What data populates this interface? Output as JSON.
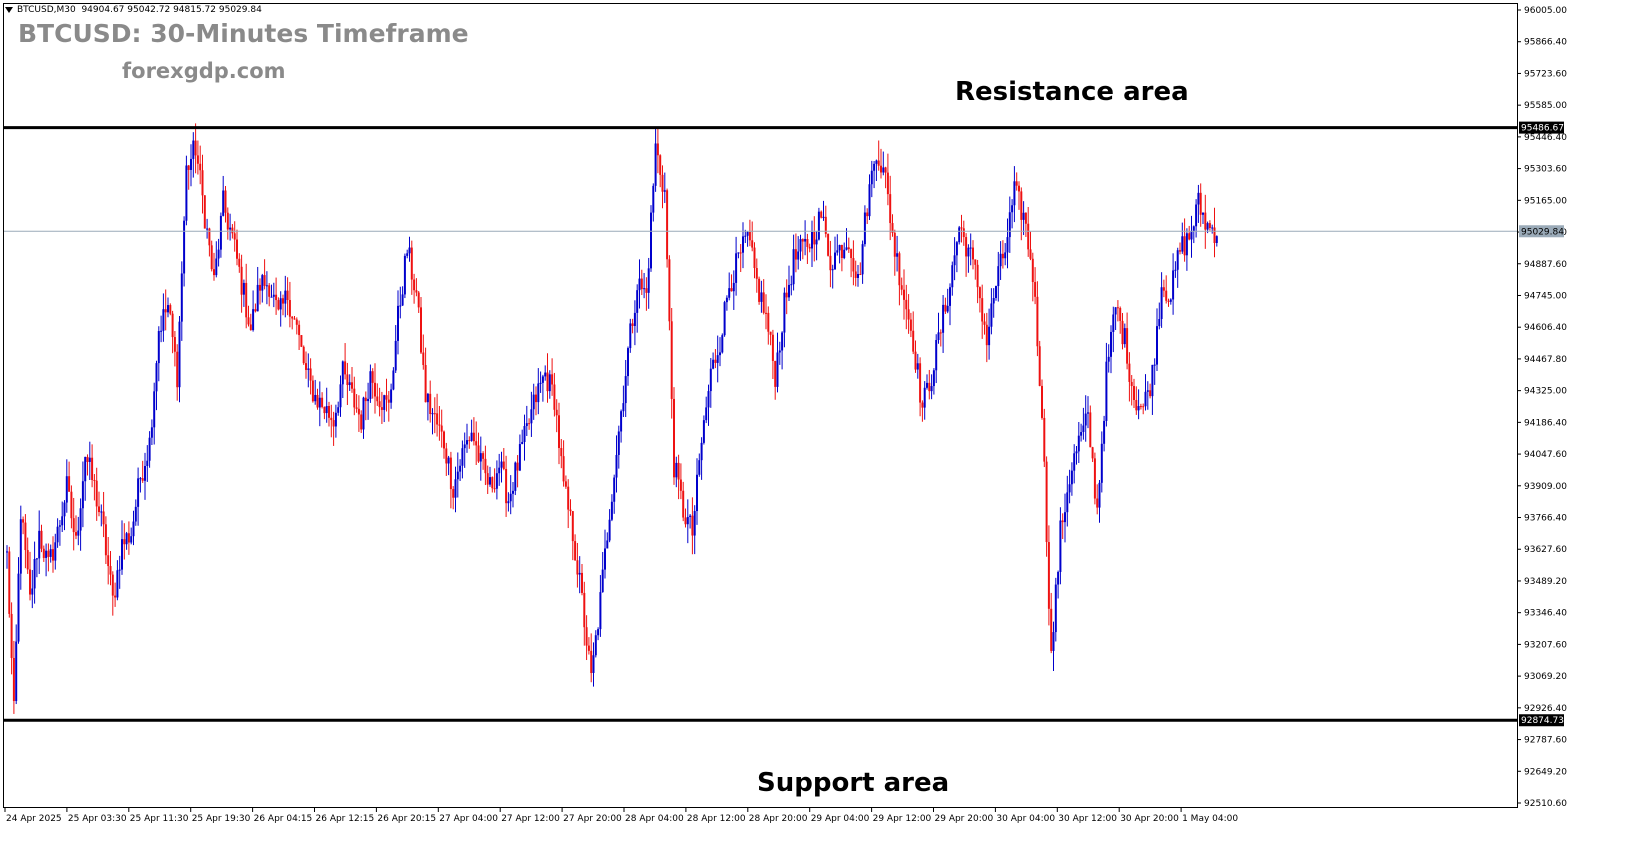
{
  "header": {
    "symbol_info": "BTCUSD,M30  94904.67 95042.72 94815.72 95029.84",
    "title": "BTCUSD: 30-Minutes Timeframe",
    "website": "forexgdp.com"
  },
  "annotations": {
    "resistance": "Resistance area",
    "support": "Support area"
  },
  "colors": {
    "bull": "#0000cc",
    "bear": "#ee1111",
    "level_line": "#000000",
    "current_price_line": "#9aaab8",
    "axis": "#000000"
  },
  "chart_data": {
    "type": "candlestick",
    "symbol": "BTCUSD",
    "timeframe": "M30",
    "ylim": [
      92510.0,
      96005.0
    ],
    "y_ticks": [
      "96005.00",
      "95866.40",
      "95723.60",
      "95585.00",
      "95446.40",
      "95303.60",
      "95165.00",
      "95026.40",
      "94887.60",
      "94745.00",
      "94606.40",
      "94467.80",
      "94325.00",
      "94186.40",
      "94047.60",
      "93909.00",
      "93766.40",
      "93627.60",
      "93489.20",
      "93346.40",
      "93207.60",
      "93069.20",
      "92926.40",
      "92787.60",
      "92649.20",
      "92510.60"
    ],
    "x_ticks": [
      "24 Apr 2025",
      "25 Apr 03:30",
      "25 Apr 11:30",
      "25 Apr 19:30",
      "26 Apr 04:15",
      "26 Apr 12:15",
      "26 Apr 20:15",
      "27 Apr 04:00",
      "27 Apr 12:00",
      "27 Apr 20:00",
      "28 Apr 04:00",
      "28 Apr 12:00",
      "28 Apr 20:00",
      "29 Apr 04:00",
      "29 Apr 12:00",
      "29 Apr 20:00",
      "30 Apr 04:00",
      "30 Apr 12:00",
      "30 Apr 20:00",
      "1 May 04:00"
    ],
    "resistance_level": 95486.67,
    "resistance_label": "95486.67",
    "support_level": 92874.73,
    "support_label": "92874.73",
    "current_price": 95029.84,
    "current_label": "95029.84",
    "close_path": [
      [
        0,
        93600
      ],
      [
        3,
        92900
      ],
      [
        6,
        93800
      ],
      [
        10,
        93400
      ],
      [
        14,
        93700
      ],
      [
        18,
        93550
      ],
      [
        22,
        93700
      ],
      [
        26,
        93900
      ],
      [
        30,
        93650
      ],
      [
        34,
        94050
      ],
      [
        38,
        93900
      ],
      [
        42,
        93700
      ],
      [
        46,
        93400
      ],
      [
        50,
        93650
      ],
      [
        54,
        93700
      ],
      [
        58,
        93950
      ],
      [
        62,
        94100
      ],
      [
        66,
        94600
      ],
      [
        70,
        94700
      ],
      [
        74,
        94400
      ],
      [
        78,
        95300
      ],
      [
        82,
        95400
      ],
      [
        86,
        95100
      ],
      [
        90,
        94800
      ],
      [
        94,
        95150
      ],
      [
        98,
        95000
      ],
      [
        102,
        94800
      ],
      [
        106,
        94600
      ],
      [
        110,
        94800
      ],
      [
        114,
        94800
      ],
      [
        118,
        94650
      ],
      [
        122,
        94750
      ],
      [
        126,
        94600
      ],
      [
        130,
        94400
      ],
      [
        134,
        94300
      ],
      [
        138,
        94250
      ],
      [
        142,
        94200
      ],
      [
        146,
        94400
      ],
      [
        150,
        94300
      ],
      [
        154,
        94200
      ],
      [
        158,
        94400
      ],
      [
        162,
        94300
      ],
      [
        166,
        94250
      ],
      [
        170,
        94650
      ],
      [
        174,
        94950
      ],
      [
        178,
        94750
      ],
      [
        182,
        94300
      ],
      [
        186,
        94200
      ],
      [
        190,
        94100
      ],
      [
        194,
        93900
      ],
      [
        198,
        94050
      ],
      [
        202,
        94150
      ],
      [
        206,
        94000
      ],
      [
        210,
        93900
      ],
      [
        214,
        94000
      ],
      [
        218,
        93850
      ],
      [
        222,
        94000
      ],
      [
        226,
        94150
      ],
      [
        230,
        94300
      ],
      [
        234,
        94400
      ],
      [
        238,
        94300
      ],
      [
        242,
        93900
      ],
      [
        246,
        93700
      ],
      [
        250,
        93400
      ],
      [
        254,
        93050
      ],
      [
        258,
        93400
      ],
      [
        262,
        93800
      ],
      [
        266,
        94150
      ],
      [
        270,
        94500
      ],
      [
        274,
        94800
      ],
      [
        278,
        94750
      ],
      [
        282,
        95400
      ],
      [
        286,
        95200
      ],
      [
        290,
        94000
      ],
      [
        294,
        93800
      ],
      [
        298,
        93700
      ],
      [
        302,
        94100
      ],
      [
        306,
        94400
      ],
      [
        310,
        94550
      ],
      [
        314,
        94800
      ],
      [
        318,
        94900
      ],
      [
        322,
        95000
      ],
      [
        326,
        94800
      ],
      [
        330,
        94650
      ],
      [
        334,
        94400
      ],
      [
        338,
        94700
      ],
      [
        342,
        94900
      ],
      [
        346,
        94950
      ],
      [
        350,
        95000
      ],
      [
        354,
        95100
      ],
      [
        358,
        94900
      ],
      [
        362,
        94950
      ],
      [
        366,
        95000
      ],
      [
        370,
        94800
      ],
      [
        374,
        95150
      ],
      [
        378,
        95400
      ],
      [
        382,
        95250
      ],
      [
        386,
        94950
      ],
      [
        390,
        94750
      ],
      [
        394,
        94550
      ],
      [
        398,
        94250
      ],
      [
        402,
        94400
      ],
      [
        406,
        94600
      ],
      [
        410,
        94800
      ],
      [
        414,
        95050
      ],
      [
        418,
        94950
      ],
      [
        422,
        94800
      ],
      [
        426,
        94550
      ],
      [
        430,
        94800
      ],
      [
        434,
        94950
      ],
      [
        438,
        95200
      ],
      [
        442,
        95100
      ],
      [
        446,
        94850
      ],
      [
        450,
        94250
      ],
      [
        454,
        93150
      ],
      [
        458,
        93700
      ],
      [
        462,
        93950
      ],
      [
        466,
        94100
      ],
      [
        470,
        94200
      ],
      [
        474,
        93800
      ],
      [
        478,
        94400
      ],
      [
        482,
        94700
      ],
      [
        486,
        94550
      ],
      [
        490,
        94300
      ],
      [
        494,
        94250
      ],
      [
        498,
        94400
      ],
      [
        502,
        94800
      ],
      [
        506,
        94750
      ],
      [
        510,
        94950
      ],
      [
        514,
        95000
      ],
      [
        518,
        95150
      ],
      [
        522,
        95050
      ],
      [
        526,
        95030
      ]
    ]
  }
}
